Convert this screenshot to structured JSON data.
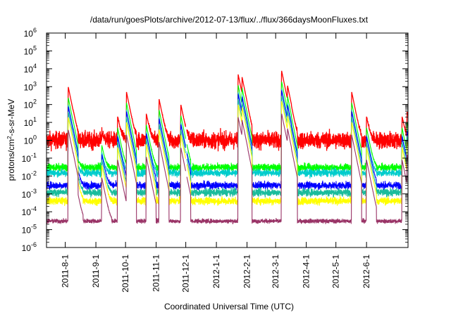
{
  "chart_data": {
    "type": "line",
    "title": "/data/run/goesPlots/archive/2012-07-13/flux/../flux/366daysMoonFluxes.txt",
    "xlabel": "Coordinated Universal Time (UTC)",
    "ylabel": "protons/cm2-s-sr-MeV",
    "ylabel_parts": {
      "pre": "protons/cm",
      "sup": "2",
      "post": "-s-sr-MeV"
    },
    "yscale": "log",
    "ylim": [
      1e-06,
      1000000.0
    ],
    "xlim": [
      "2011-07-13",
      "2012-07-13"
    ],
    "grid": false,
    "legend": "none",
    "yticks": [
      {
        "exp": "-6"
      },
      {
        "exp": "-5"
      },
      {
        "exp": "-4"
      },
      {
        "exp": "-3"
      },
      {
        "exp": "-2"
      },
      {
        "exp": "-1"
      },
      {
        "exp": "0"
      },
      {
        "exp": "1"
      },
      {
        "exp": "2"
      },
      {
        "exp": "3"
      },
      {
        "exp": "4"
      },
      {
        "exp": "5"
      },
      {
        "exp": "6"
      }
    ],
    "ytick_base": "10",
    "xticks": [
      {
        "date": "2011-08-01",
        "label": "2011-8-1"
      },
      {
        "date": "2011-09-01",
        "label": "2011-9-1"
      },
      {
        "date": "2011-10-01",
        "label": "2011-10-1"
      },
      {
        "date": "2011-11-01",
        "label": "2011-11-1"
      },
      {
        "date": "2011-12-01",
        "label": "2011-12-1"
      },
      {
        "date": "2012-01-01",
        "label": "2012-1-1"
      },
      {
        "date": "2012-02-01",
        "label": "2012-2-1"
      },
      {
        "date": "2012-03-01",
        "label": "2012-3-1"
      },
      {
        "date": "2012-04-01",
        "label": "2012-4-1"
      },
      {
        "date": "2012-05-01",
        "label": "2012-5-1"
      },
      {
        "date": "2012-06-01",
        "label": "2012-6-1"
      }
    ],
    "data_gap": [
      "2011-12-01",
      "2011-12-02"
    ],
    "events": [
      {
        "date": "2011-08-04",
        "peak": 1000
      },
      {
        "date": "2011-08-09",
        "peak": 5
      },
      {
        "date": "2011-09-07",
        "peak": 2
      },
      {
        "date": "2011-09-23",
        "peak": 20
      },
      {
        "date": "2011-10-02",
        "peak": 500
      },
      {
        "date": "2011-10-22",
        "peak": 30
      },
      {
        "date": "2011-11-04",
        "peak": 200
      },
      {
        "date": "2011-11-26",
        "peak": 100
      },
      {
        "date": "2012-01-23",
        "peak": 5000
      },
      {
        "date": "2012-01-27",
        "peak": 3000
      },
      {
        "date": "2012-03-07",
        "peak": 8000
      },
      {
        "date": "2012-03-13",
        "peak": 1000
      },
      {
        "date": "2012-05-17",
        "peak": 500
      },
      {
        "date": "2012-06-01",
        "peak": 20
      },
      {
        "date": "2012-07-07",
        "peak": 20
      },
      {
        "date": "2012-07-12",
        "peak": 40
      }
    ],
    "series": [
      {
        "color": "#ff0000",
        "baseline": 1.0,
        "peak_scale": 1.0
      },
      {
        "color": "#00ff00",
        "baseline": 0.03,
        "peak_scale": 0.25
      },
      {
        "color": "#00cccc",
        "baseline": 0.015,
        "peak_scale": 0.1
      },
      {
        "color": "#0000ff",
        "baseline": 0.003,
        "peak_scale": 0.08
      },
      {
        "color": "#1abc9c",
        "baseline": 0.0012,
        "peak_scale": 0.04
      },
      {
        "color": "#ffff00",
        "baseline": 0.0004,
        "peak_scale": 0.02
      },
      {
        "color": "#993366",
        "baseline": 3e-05,
        "peak_scale": 0.004
      }
    ]
  }
}
